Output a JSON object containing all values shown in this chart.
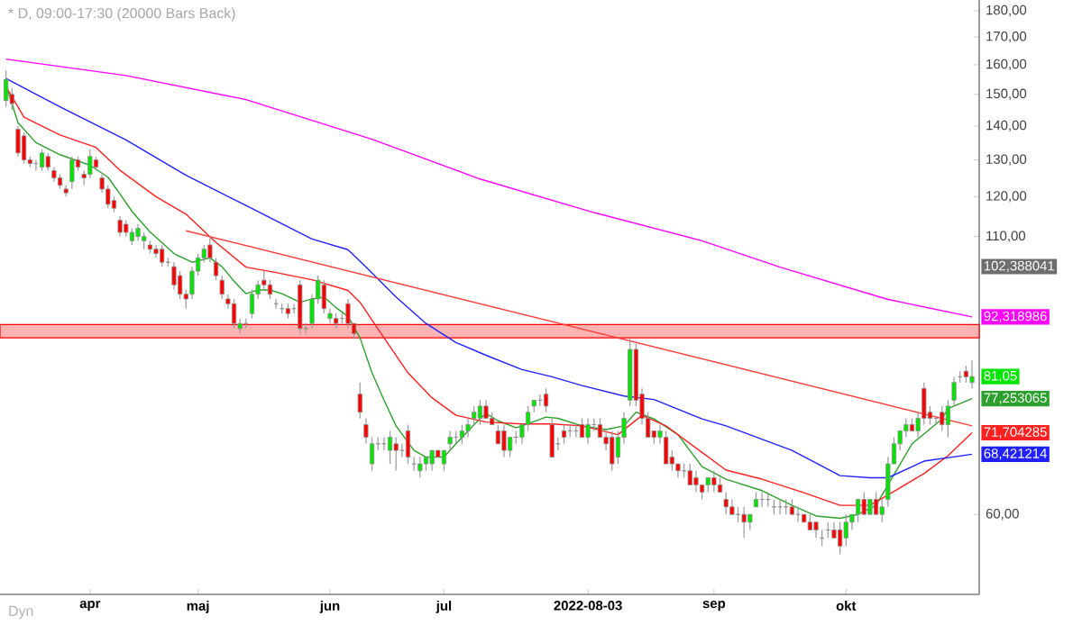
{
  "chart_data": {
    "type": "candlestick",
    "title": "* D, 09:00-17:30 (20000 Bars Back)",
    "log": true,
    "categories": [
      null,
      null,
      null,
      null,
      null,
      null,
      null,
      null,
      null,
      null,
      null,
      null,
      null,
      null,
      "apr",
      null,
      null,
      null,
      null,
      null,
      null,
      null,
      null,
      null,
      null,
      null,
      null,
      null,
      null,
      null,
      null,
      null,
      "maj",
      null,
      null,
      null,
      null,
      null,
      null,
      null,
      null,
      null,
      null,
      null,
      null,
      null,
      null,
      null,
      null,
      null,
      null,
      null,
      null,
      null,
      "jun",
      null,
      null,
      null,
      null,
      null,
      null,
      null,
      null,
      null,
      null,
      null,
      null,
      null,
      null,
      null,
      null,
      null,
      null,
      "jul",
      null,
      null,
      null,
      null,
      null,
      null,
      null,
      null,
      null,
      null,
      null,
      null,
      null,
      null,
      null,
      null,
      null,
      null,
      null,
      null,
      null,
      null,
      null,
      "2022-08-03",
      null,
      null,
      null,
      null,
      null,
      null,
      null,
      null,
      null,
      null,
      null,
      null,
      null,
      null,
      null,
      null,
      null,
      null,
      null,
      null,
      "sep",
      null,
      null,
      null,
      null,
      null,
      null,
      null,
      null,
      null,
      null,
      null,
      null,
      null,
      null,
      null,
      null,
      null,
      null,
      null,
      null,
      null,
      "okt",
      null,
      null,
      null,
      null,
      null,
      null,
      null,
      null,
      null,
      null,
      null,
      null,
      null,
      null,
      null,
      null,
      null,
      null,
      null,
      null,
      null
    ],
    "ohlc": [
      [
        148,
        158,
        146,
        155
      ],
      [
        150,
        152,
        145,
        147
      ],
      [
        139,
        140,
        131,
        132
      ],
      [
        137,
        138,
        129,
        130
      ],
      [
        130,
        131,
        128,
        129
      ],
      [
        129,
        130,
        127,
        129
      ],
      [
        128,
        133,
        127,
        132
      ],
      [
        131,
        132,
        127,
        128
      ],
      [
        127,
        128,
        124,
        125
      ],
      [
        125,
        126,
        122,
        123
      ],
      [
        122,
        123,
        120,
        121
      ],
      [
        124,
        131,
        122,
        130
      ],
      [
        130,
        131,
        127,
        128
      ],
      [
        126,
        127,
        123,
        125
      ],
      [
        126,
        133,
        125,
        131
      ],
      [
        130,
        131,
        127,
        128
      ],
      [
        125,
        126,
        121,
        122
      ],
      [
        122,
        123,
        117,
        118
      ],
      [
        119,
        120,
        116,
        117
      ],
      [
        114,
        115,
        110,
        111
      ],
      [
        113,
        114,
        110,
        111
      ],
      [
        109,
        112,
        108,
        111
      ],
      [
        110,
        113,
        109,
        112
      ],
      [
        109,
        111,
        107,
        110
      ],
      [
        108,
        109,
        106,
        107
      ],
      [
        107,
        108,
        105,
        106
      ],
      [
        107,
        108,
        103,
        104
      ],
      [
        104,
        105,
        103,
        104
      ],
      [
        103,
        104,
        98,
        99
      ],
      [
        101,
        102,
        96,
        97
      ],
      [
        97,
        98,
        94,
        96
      ],
      [
        97,
        103,
        96,
        102
      ],
      [
        102,
        106,
        101,
        105
      ],
      [
        105,
        108,
        104,
        107
      ],
      [
        108,
        110,
        104,
        105
      ],
      [
        104,
        105,
        100,
        101
      ],
      [
        100,
        101,
        96,
        97
      ],
      [
        96,
        97,
        94,
        95
      ],
      [
        95,
        96,
        90,
        91
      ],
      [
        90,
        92,
        89,
        91
      ],
      [
        91,
        92,
        90,
        91
      ],
      [
        93,
        98,
        92,
        97
      ],
      [
        97,
        100,
        96,
        99
      ],
      [
        100,
        102,
        98,
        99
      ],
      [
        99,
        100,
        96,
        97
      ],
      [
        95,
        96,
        94,
        95
      ],
      [
        94,
        95,
        93,
        94
      ],
      [
        94,
        95,
        92,
        93
      ],
      [
        94,
        95,
        93,
        94
      ],
      [
        99,
        100,
        89,
        90
      ],
      [
        90,
        91,
        89,
        90
      ],
      [
        91,
        97,
        90,
        96
      ],
      [
        96,
        101,
        95,
        100
      ],
      [
        99,
        100,
        93,
        94
      ],
      [
        92,
        94,
        91,
        93
      ],
      [
        92,
        93,
        90,
        91
      ],
      [
        92,
        93,
        91,
        92
      ],
      [
        95,
        96,
        90,
        91
      ],
      [
        91,
        91,
        88,
        89
      ],
      [
        78,
        80,
        74,
        75
      ],
      [
        73,
        74,
        70,
        71
      ],
      [
        67,
        71,
        66,
        70
      ],
      [
        70,
        71,
        69,
        70
      ],
      [
        70,
        71,
        69,
        70
      ],
      [
        69,
        72,
        67,
        71
      ],
      [
        70,
        71,
        66,
        69
      ],
      [
        69,
        70,
        68,
        69
      ],
      [
        72,
        73,
        67,
        68
      ],
      [
        67,
        68,
        66,
        67
      ],
      [
        66,
        68,
        65,
        67
      ],
      [
        67,
        68,
        66,
        68
      ],
      [
        67,
        69,
        66,
        69
      ],
      [
        69,
        69,
        68,
        68
      ],
      [
        67,
        69,
        66,
        69
      ],
      [
        70,
        72,
        69,
        71
      ],
      [
        71,
        72,
        70,
        71
      ],
      [
        71,
        73,
        70,
        72
      ],
      [
        72,
        74,
        71,
        73
      ],
      [
        74,
        76,
        73,
        75
      ],
      [
        74,
        77,
        73,
        76
      ],
      [
        76,
        77,
        74,
        74
      ],
      [
        74,
        75,
        73,
        73
      ],
      [
        72,
        73,
        70,
        70
      ],
      [
        72,
        73,
        68,
        69
      ],
      [
        69,
        71,
        68,
        71
      ],
      [
        71,
        72,
        70,
        71
      ],
      [
        71,
        73,
        70,
        73
      ],
      [
        73,
        76,
        72,
        75
      ],
      [
        76,
        77,
        75,
        77
      ],
      [
        77,
        78,
        76,
        77
      ],
      [
        78,
        79,
        75,
        76
      ],
      [
        73,
        74,
        68,
        68
      ],
      [
        70,
        71,
        69,
        70
      ],
      [
        72,
        73,
        70,
        71
      ],
      [
        72,
        73,
        71,
        72
      ],
      [
        72,
        73,
        71,
        72
      ],
      [
        73,
        74,
        71,
        71
      ],
      [
        71,
        74,
        70,
        73
      ],
      [
        73,
        74,
        72,
        73
      ],
      [
        73,
        74,
        71,
        71
      ],
      [
        71,
        72,
        69,
        70
      ],
      [
        71,
        72,
        66,
        67
      ],
      [
        68,
        72,
        67,
        71
      ],
      [
        71,
        75,
        70,
        74
      ],
      [
        77,
        88,
        76,
        86
      ],
      [
        86,
        87,
        76,
        77
      ],
      [
        78,
        79,
        73,
        74
      ],
      [
        74,
        75,
        71,
        71
      ],
      [
        72,
        72,
        70,
        71
      ],
      [
        71,
        73,
        70,
        72
      ],
      [
        71,
        72,
        67,
        67
      ],
      [
        68,
        69,
        66,
        67
      ],
      [
        67,
        67,
        65,
        66
      ],
      [
        66,
        67,
        65,
        66
      ],
      [
        66,
        67,
        64,
        64
      ],
      [
        65,
        66,
        63,
        64
      ],
      [
        64,
        64,
        62,
        63
      ],
      [
        64,
        65,
        63,
        65
      ],
      [
        65,
        66,
        63,
        64
      ],
      [
        64,
        65,
        63,
        63
      ],
      [
        62,
        63,
        60,
        61
      ],
      [
        61,
        62,
        60,
        60
      ],
      [
        60,
        61,
        59,
        60
      ],
      [
        60,
        61,
        57,
        59
      ],
      [
        59,
        60,
        58,
        60
      ],
      [
        61,
        63,
        61,
        62
      ],
      [
        62,
        63,
        61,
        62
      ],
      [
        62,
        63,
        61,
        62
      ],
      [
        61,
        62,
        60,
        61
      ],
      [
        61,
        62,
        60,
        61
      ],
      [
        61,
        62,
        60,
        61
      ],
      [
        61,
        62,
        60,
        60
      ],
      [
        60,
        61,
        59,
        60
      ],
      [
        60,
        60,
        59,
        59
      ],
      [
        59,
        60,
        58,
        58
      ],
      [
        59,
        59,
        57,
        58
      ],
      [
        57,
        58,
        56,
        57
      ],
      [
        58,
        59,
        57,
        58
      ],
      [
        58,
        59,
        57,
        57
      ],
      [
        58,
        59,
        55,
        56
      ],
      [
        57,
        60,
        56,
        59
      ],
      [
        59,
        60,
        58,
        60
      ],
      [
        60,
        62,
        59,
        62
      ],
      [
        62,
        63,
        60,
        60
      ],
      [
        60,
        62,
        60,
        62
      ],
      [
        62,
        63,
        60,
        60
      ],
      [
        60,
        62,
        59,
        61
      ],
      [
        62,
        68,
        61,
        67
      ],
      [
        67,
        71,
        67,
        70
      ],
      [
        70,
        72,
        69,
        72
      ],
      [
        72,
        74,
        71,
        73
      ],
      [
        73,
        74,
        72,
        72
      ],
      [
        72,
        75,
        71,
        74
      ],
      [
        79,
        80,
        73,
        74
      ],
      [
        75,
        76,
        73,
        74
      ],
      [
        74,
        74,
        73,
        74
      ],
      [
        75,
        76,
        72,
        73
      ],
      [
        73,
        77,
        71,
        76
      ],
      [
        77,
        81,
        76,
        80
      ],
      [
        81,
        82,
        80,
        81
      ],
      [
        82,
        83,
        80,
        81
      ],
      [
        80,
        84,
        79,
        81.05
      ]
    ],
    "value_labels": [
      null,
      null,
      null,
      null,
      null,
      null,
      null,
      null,
      null,
      null,
      null,
      null,
      null,
      null,
      null,
      null,
      null,
      null,
      null,
      null,
      null,
      null,
      null,
      null,
      null,
      null,
      null,
      null,
      null,
      null,
      null,
      null,
      null,
      null,
      null,
      null,
      null,
      null,
      null,
      null,
      null,
      null,
      null,
      null,
      null,
      null,
      null,
      null,
      null,
      null,
      null,
      null,
      null,
      null,
      null,
      null,
      null,
      null,
      null,
      null,
      null,
      null,
      null,
      null,
      null,
      null,
      null,
      null,
      null,
      null,
      null,
      null,
      null,
      null,
      null,
      null,
      null,
      null,
      null,
      null,
      null,
      null,
      null,
      null,
      null,
      null,
      null,
      null,
      null,
      null,
      null,
      null,
      null,
      null,
      null,
      null,
      null,
      null,
      null,
      null,
      null,
      null,
      null,
      null,
      null,
      null,
      null,
      null,
      null,
      null,
      null,
      null,
      null,
      null,
      null,
      null,
      null,
      null,
      null,
      null,
      null,
      null,
      null,
      null,
      null,
      null,
      null,
      null,
      null,
      null,
      null,
      null,
      null,
      null,
      null,
      null,
      null,
      null,
      null,
      null,
      null,
      null,
      null,
      null,
      null,
      null,
      null,
      null,
      null,
      null,
      null,
      null,
      null,
      null,
      null,
      null,
      null,
      null,
      null,
      null,
      null,
      "81,05"
    ],
    "series": [
      {
        "type": "line",
        "color": "#ff00ff",
        "values": [
          162,
          null,
          null,
          null,
          null,
          null,
          null,
          null,
          null,
          null,
          null,
          null,
          null,
          null,
          null,
          null,
          null,
          null,
          null,
          null,
          156.3,
          null,
          null,
          null,
          null,
          null,
          null,
          null,
          null,
          null,
          null,
          null,
          null,
          null,
          null,
          null,
          null,
          null,
          null,
          null,
          148.3,
          null,
          null,
          null,
          null,
          null,
          null,
          null,
          null,
          null,
          null,
          null,
          null,
          null,
          null,
          null,
          null,
          null,
          null,
          null,
          null,
          136,
          null,
          null,
          null,
          null,
          null,
          null,
          null,
          null,
          null,
          null,
          null,
          null,
          null,
          null,
          null,
          null,
          null,
          124.7,
          null,
          null,
          null,
          null,
          null,
          null,
          null,
          null,
          null,
          null,
          null,
          null,
          null,
          null,
          null,
          null,
          null,
          null,
          115.9,
          null,
          null,
          null,
          null,
          null,
          null,
          null,
          null,
          null,
          null,
          null,
          null,
          null,
          null,
          null,
          null,
          null,
          109,
          null,
          null,
          null,
          null,
          null,
          null,
          null,
          null,
          null,
          null,
          null,
          null,
          102.9,
          null,
          null,
          null,
          null,
          null,
          null,
          null,
          null,
          null,
          null,
          null,
          null,
          null,
          null,
          null,
          null,
          null,
          95.9,
          null,
          null,
          null,
          null,
          null,
          null,
          null,
          null,
          null,
          null,
          null,
          null,
          null,
          92.318986
        ],
        "value_labels": [
          null,
          null,
          null,
          null,
          null,
          null,
          null,
          null,
          null,
          null,
          null,
          null,
          null,
          null,
          null,
          null,
          null,
          null,
          null,
          null,
          null,
          null,
          null,
          null,
          null,
          null,
          null,
          null,
          null,
          null,
          null,
          null,
          null,
          null,
          null,
          null,
          null,
          null,
          null,
          null,
          null,
          null,
          null,
          null,
          null,
          null,
          null,
          null,
          null,
          null,
          null,
          null,
          null,
          null,
          null,
          null,
          null,
          null,
          null,
          null,
          null,
          null,
          null,
          null,
          null,
          null,
          null,
          null,
          null,
          null,
          null,
          null,
          null,
          null,
          null,
          null,
          null,
          null,
          null,
          null,
          null,
          null,
          null,
          null,
          null,
          null,
          null,
          null,
          null,
          null,
          null,
          null,
          null,
          null,
          null,
          null,
          null,
          null,
          null,
          null,
          null,
          null,
          null,
          null,
          null,
          null,
          null,
          null,
          null,
          null,
          null,
          null,
          null,
          null,
          null,
          null,
          null,
          null,
          null,
          null,
          null,
          null,
          null,
          null,
          null,
          null,
          null,
          null,
          null,
          null,
          null,
          null,
          null,
          null,
          null,
          null,
          null,
          null,
          null,
          null,
          null,
          null,
          null,
          null,
          null,
          null,
          null,
          null,
          null,
          null,
          null,
          null,
          null,
          null,
          null,
          null,
          null,
          null,
          null,
          null,
          null,
          "92,318986"
        ]
      },
      {
        "type": "line",
        "color": "#2ca02c",
        "values": [
          153,
          147,
          141,
          null,
          null,
          135,
          null,
          null,
          null,
          131.5,
          null,
          null,
          null,
          null,
          128.5,
          null,
          null,
          125.2,
          null,
          120.7,
          null,
          116.2,
          null,
          null,
          111.1,
          null,
          null,
          null,
          106,
          null,
          null,
          104,
          null,
          null,
          105,
          null,
          103,
          null,
          99.8,
          null,
          97.1,
          null,
          97.9,
          null,
          97.9,
          null,
          97.1,
          null,
          null,
          95.3,
          null,
          96,
          null,
          96.4,
          null,
          94.2,
          null,
          92.4,
          null,
          88.2,
          null,
          81.7,
          null,
          77,
          null,
          72.8,
          null,
          null,
          69,
          null,
          68,
          null,
          null,
          68,
          null,
          70,
          null,
          null,
          73,
          null,
          74.8,
          null,
          73.6,
          null,
          null,
          72.5,
          72.8,
          null,
          null,
          null,
          74.2,
          null,
          74,
          null,
          null,
          null,
          72.8,
          null,
          null,
          null,
          72.2,
          null,
          null,
          72.8,
          null,
          75,
          null,
          null,
          73.9,
          null,
          null,
          null,
          71.4,
          null,
          null,
          null,
          66.6,
          null,
          null,
          null,
          64.8,
          null,
          null,
          null,
          null,
          null,
          63.2,
          null,
          null,
          null,
          null,
          61.2,
          null,
          null,
          null,
          59.8,
          null,
          null,
          null,
          59.5,
          null,
          null,
          60,
          null,
          null,
          61.2,
          null,
          64,
          null,
          null,
          null,
          70,
          null,
          null,
          null,
          null,
          73.9,
          75.6,
          null,
          null,
          null,
          77.253065
        ],
        "value_labels": [
          null,
          null,
          null,
          null,
          null,
          null,
          null,
          null,
          null,
          null,
          null,
          null,
          null,
          null,
          null,
          null,
          null,
          null,
          null,
          null,
          null,
          null,
          null,
          null,
          null,
          null,
          null,
          null,
          null,
          null,
          null,
          null,
          null,
          null,
          null,
          null,
          null,
          null,
          null,
          null,
          null,
          null,
          null,
          null,
          null,
          null,
          null,
          null,
          null,
          null,
          null,
          null,
          null,
          null,
          null,
          null,
          null,
          null,
          null,
          null,
          null,
          null,
          null,
          null,
          null,
          null,
          null,
          null,
          null,
          null,
          null,
          null,
          null,
          null,
          null,
          null,
          null,
          null,
          null,
          null,
          null,
          null,
          null,
          null,
          null,
          null,
          null,
          null,
          null,
          null,
          null,
          null,
          null,
          null,
          null,
          null,
          null,
          null,
          null,
          null,
          null,
          null,
          null,
          null,
          null,
          null,
          null,
          null,
          null,
          null,
          null,
          null,
          null,
          null,
          null,
          null,
          null,
          null,
          null,
          null,
          null,
          null,
          null,
          null,
          null,
          null,
          null,
          null,
          null,
          null,
          null,
          null,
          null,
          null,
          null,
          null,
          null,
          null,
          null,
          null,
          null,
          null,
          null,
          null,
          null,
          null,
          null,
          null,
          null,
          null,
          null,
          null,
          null,
          null,
          null,
          null,
          null,
          null,
          null,
          null,
          null,
          "77,253065"
        ]
      },
      {
        "type": "line",
        "color": "#ff2020",
        "values": [
          152.6,
          null,
          null,
          142.7,
          null,
          null,
          null,
          null,
          null,
          137.3,
          null,
          null,
          null,
          null,
          null,
          133.6,
          null,
          null,
          null,
          127.1,
          null,
          null,
          null,
          null,
          null,
          120,
          null,
          null,
          null,
          null,
          115.5,
          null,
          null,
          null,
          null,
          108.6,
          null,
          null,
          null,
          null,
          102.9,
          null,
          null,
          null,
          null,
          101.7,
          null,
          null,
          null,
          null,
          null,
          100.1,
          null,
          null,
          null,
          null,
          null,
          97.8,
          null,
          95.3,
          null,
          91.7,
          null,
          88.2,
          null,
          null,
          null,
          81.7,
          null,
          null,
          null,
          77.4,
          null,
          null,
          null,
          74.5,
          null,
          null,
          null,
          null,
          73.4,
          null,
          null,
          null,
          null,
          null,
          73.1,
          null,
          null,
          null,
          null,
          73.1,
          null,
          null,
          null,
          null,
          72.8,
          null,
          null,
          null,
          null,
          null,
          71.4,
          null,
          null,
          null,
          74.5,
          null,
          null,
          null,
          72.8,
          null,
          null,
          null,
          null,
          null,
          68.7,
          null,
          null,
          null,
          66.1,
          null,
          null,
          null,
          null,
          null,
          64.8,
          null,
          null,
          null,
          null,
          null,
          null,
          62.9,
          null,
          null,
          null,
          null,
          null,
          61.2,
          null,
          null,
          null,
          null,
          61.2,
          null,
          null,
          null,
          63.1,
          null,
          null,
          null,
          null,
          65.6,
          null,
          null,
          null,
          68.2,
          null,
          null,
          null,
          71.704285
        ],
        "value_labels": [
          null,
          null,
          null,
          null,
          null,
          null,
          null,
          null,
          null,
          null,
          null,
          null,
          null,
          null,
          null,
          null,
          null,
          null,
          null,
          null,
          null,
          null,
          null,
          null,
          null,
          null,
          null,
          null,
          null,
          null,
          null,
          null,
          null,
          null,
          null,
          null,
          null,
          null,
          null,
          null,
          null,
          null,
          null,
          null,
          null,
          null,
          null,
          null,
          null,
          null,
          null,
          null,
          null,
          null,
          null,
          null,
          null,
          null,
          null,
          null,
          null,
          null,
          null,
          null,
          null,
          null,
          null,
          null,
          null,
          null,
          null,
          null,
          null,
          null,
          null,
          null,
          null,
          null,
          null,
          null,
          null,
          null,
          null,
          null,
          null,
          null,
          null,
          null,
          null,
          null,
          null,
          null,
          null,
          null,
          null,
          null,
          null,
          null,
          null,
          null,
          null,
          null,
          null,
          null,
          null,
          null,
          null,
          null,
          null,
          null,
          null,
          null,
          null,
          null,
          null,
          null,
          null,
          null,
          null,
          null,
          null,
          null,
          null,
          null,
          null,
          null,
          null,
          null,
          null,
          null,
          null,
          null,
          null,
          null,
          null,
          null,
          null,
          null,
          null,
          null,
          null,
          null,
          null,
          null,
          null,
          null,
          null,
          null,
          null,
          null,
          null,
          null,
          null,
          null,
          null,
          null,
          null,
          null,
          null,
          null,
          null,
          "71,704285"
        ]
      },
      {
        "type": "line",
        "color": "#2020ff",
        "values": [
          155.3,
          null,
          null,
          null,
          null,
          null,
          null,
          null,
          null,
          146,
          null,
          null,
          null,
          null,
          null,
          null,
          null,
          null,
          null,
          null,
          135.8,
          null,
          null,
          null,
          null,
          null,
          null,
          null,
          null,
          null,
          125.7,
          null,
          null,
          null,
          null,
          null,
          null,
          null,
          null,
          null,
          117.7,
          null,
          null,
          null,
          null,
          null,
          null,
          null,
          null,
          null,
          null,
          109.4,
          null,
          null,
          null,
          null,
          null,
          106.9,
          null,
          null,
          102.9,
          null,
          null,
          null,
          null,
          96.4,
          null,
          null,
          null,
          null,
          91,
          null,
          null,
          null,
          null,
          87.3,
          null,
          null,
          null,
          null,
          84.9,
          null,
          null,
          null,
          null,
          null,
          82.3,
          null,
          null,
          null,
          null,
          81,
          null,
          null,
          null,
          null,
          79.5,
          null,
          null,
          null,
          null,
          null,
          null,
          77.7,
          null,
          null,
          null,
          null,
          77.1,
          null,
          null,
          null,
          null,
          null,
          null,
          null,
          73.9,
          null,
          null,
          null,
          72.8,
          null,
          null,
          null,
          null,
          null,
          null,
          null,
          null,
          null,
          null,
          69,
          null,
          null,
          null,
          null,
          null,
          null,
          null,
          65.3,
          null,
          null,
          null,
          null,
          65,
          null,
          null,
          65,
          null,
          null,
          null,
          null,
          null,
          67.4,
          null,
          null,
          null,
          null,
          null,
          null,
          null,
          68.421214
        ],
        "value_labels": [
          null,
          null,
          null,
          null,
          null,
          null,
          null,
          null,
          null,
          null,
          null,
          null,
          null,
          null,
          null,
          null,
          null,
          null,
          null,
          null,
          null,
          null,
          null,
          null,
          null,
          null,
          null,
          null,
          null,
          null,
          null,
          null,
          null,
          null,
          null,
          null,
          null,
          null,
          null,
          null,
          null,
          null,
          null,
          null,
          null,
          null,
          null,
          null,
          null,
          null,
          null,
          null,
          null,
          null,
          null,
          null,
          null,
          null,
          null,
          null,
          null,
          null,
          null,
          null,
          null,
          null,
          null,
          null,
          null,
          null,
          null,
          null,
          null,
          null,
          null,
          null,
          null,
          null,
          null,
          null,
          null,
          null,
          null,
          null,
          null,
          null,
          null,
          null,
          null,
          null,
          null,
          null,
          null,
          null,
          null,
          null,
          null,
          null,
          null,
          null,
          null,
          null,
          null,
          null,
          null,
          null,
          null,
          null,
          null,
          null,
          null,
          null,
          null,
          null,
          null,
          null,
          null,
          null,
          null,
          null,
          null,
          null,
          null,
          null,
          null,
          null,
          null,
          null,
          null,
          null,
          null,
          null,
          null,
          null,
          null,
          null,
          null,
          null,
          null,
          null,
          null,
          null,
          null,
          null,
          null,
          null,
          null,
          null,
          null,
          null,
          null,
          null,
          null,
          null,
          null,
          null,
          null,
          null,
          null,
          null,
          null,
          "68,421214"
        ]
      },
      {
        "type": "line",
        "color": "#ff4040",
        "values": [
          null,
          null,
          null,
          null,
          null,
          null,
          null,
          null,
          null,
          null,
          null,
          null,
          null,
          null,
          null,
          null,
          null,
          null,
          null,
          null,
          null,
          null,
          null,
          null,
          null,
          null,
          null,
          null,
          null,
          null,
          111.4,
          null,
          null,
          null,
          null,
          null,
          null,
          null,
          null,
          null,
          null,
          null,
          null,
          null,
          null,
          null,
          null,
          null,
          null,
          null,
          null,
          null,
          null,
          null,
          null,
          null,
          null,
          null,
          null,
          null,
          null,
          null,
          null,
          null,
          null,
          null,
          null,
          null,
          null,
          null,
          null,
          null,
          null,
          null,
          null,
          null,
          null,
          null,
          null,
          null,
          null,
          null,
          null,
          null,
          null,
          null,
          null,
          null,
          null,
          null,
          null,
          null,
          null,
          null,
          null,
          null,
          null,
          null,
          null,
          null,
          null,
          null,
          null,
          null,
          null,
          null,
          null,
          null,
          null,
          null,
          null,
          null,
          null,
          null,
          null,
          null,
          null,
          null,
          null,
          null,
          null,
          null,
          null,
          null,
          null,
          null,
          null,
          null,
          null,
          null,
          null,
          null,
          null,
          null,
          null,
          null,
          null,
          null,
          null,
          null,
          null,
          null,
          null,
          null,
          null,
          null,
          null,
          null,
          null,
          null,
          null,
          null,
          null,
          null,
          null,
          null,
          null,
          null,
          null,
          null,
          null,
          72.8
        ]
      }
    ],
    "bands": [
      {
        "axis": "y",
        "from": 88.2,
        "to": 90.8,
        "color": "#ffb3b3"
      }
    ],
    "annotations": [
      "102,388041",
      "Dyn"
    ],
    "ylim": [
      50.4,
      184.3
    ],
    "yticks": [
      {
        "value": 60,
        "label": "60,00"
      },
      {
        "value": 110,
        "label": "110,00"
      },
      {
        "value": 120,
        "label": "120,00"
      },
      {
        "value": 130,
        "label": "130,00"
      },
      {
        "value": 140,
        "label": "140,00"
      },
      {
        "value": 150,
        "label": "150,00"
      },
      {
        "value": 160,
        "label": "160,00"
      },
      {
        "value": 170,
        "label": "170,00"
      },
      {
        "value": 180,
        "label": "180,00"
      }
    ]
  }
}
